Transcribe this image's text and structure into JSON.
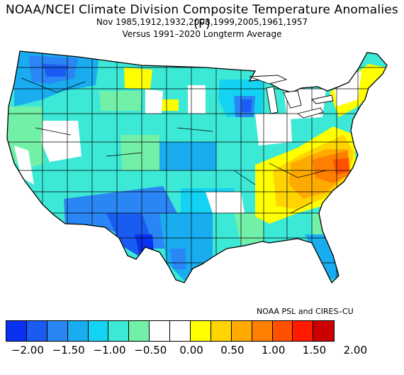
{
  "title": "NOAA/NCEI Climate Division Composite Temperature Anomalies (F)",
  "subtitle_years": "Nov  1985,1912,1932,2008,1999,2005,1961,1957",
  "subtitle_base": "Versus 1991–2020 Longterm Average",
  "credit": "NOAA PSL and CIRES–CU",
  "legend": {
    "colors": [
      "#0a30f0",
      "#1a5cf2",
      "#2a86f4",
      "#19adf0",
      "#14d3f2",
      "#3ce8d6",
      "#72f0a8",
      "#ffffff",
      "#ffffff",
      "#ffff00",
      "#ffd400",
      "#ffaa00",
      "#ff7f00",
      "#ff5000",
      "#ff1a00",
      "#cc0000"
    ],
    "tick_labels": [
      "−2.00",
      "−1.50",
      "−1.00",
      "−0.50",
      "0.00",
      "0.50",
      "1.00",
      "1.50",
      "2.00"
    ]
  }
}
